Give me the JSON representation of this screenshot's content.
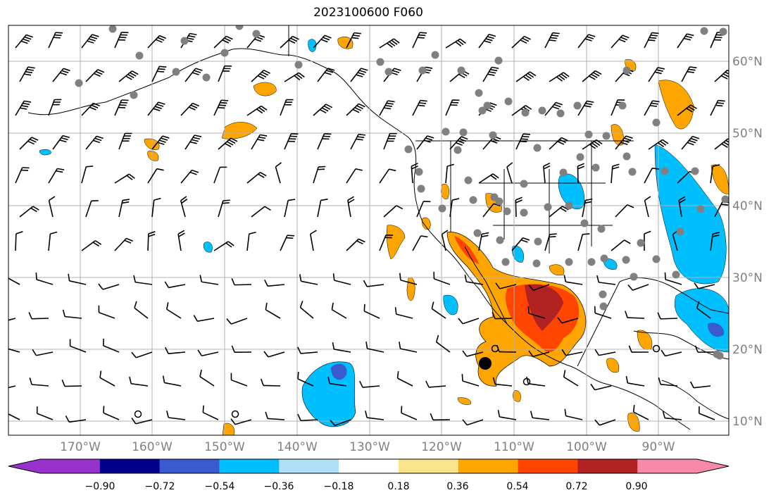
{
  "title": "2023100600 F060",
  "longitude_labels": [
    "170°W",
    "160°W",
    "150°W",
    "140°W",
    "130°W",
    "120°W",
    "110°W",
    "100°W",
    "90°W"
  ],
  "latitude_labels": [
    "60°N",
    "50°N",
    "40°N",
    "30°N",
    "20°N",
    "10°N"
  ],
  "colorbar": {
    "tick_labels": [
      "−0.90",
      "−0.72",
      "−0.54",
      "−0.36",
      "−0.18",
      "0.18",
      "0.36",
      "0.54",
      "0.72",
      "0.90"
    ],
    "colors": [
      "#9932cc",
      "#00008b",
      "#3a5bd0",
      "#00bfff",
      "#b0e0f8",
      "#ffffff",
      "#f8e58c",
      "#ffa500",
      "#ff4500",
      "#b22222",
      "#f78aa8"
    ]
  },
  "gridline_color": "#b3b3b3",
  "station_marker_color": "#808080"
}
